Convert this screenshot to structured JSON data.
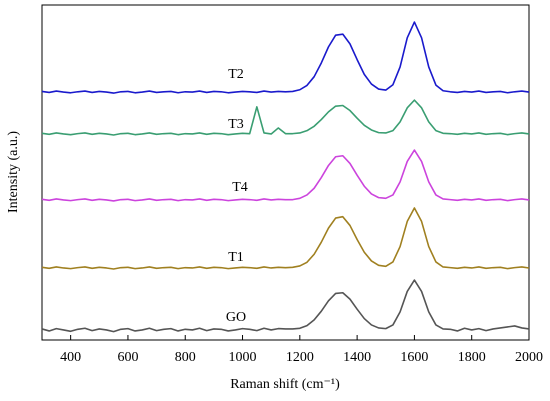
{
  "chart_data": {
    "type": "line",
    "xlabel": "Raman shift (cm⁻¹)",
    "ylabel": "Intensity (a.u.)",
    "xlim": [
      300,
      2000
    ],
    "xticks": [
      400,
      600,
      800,
      1000,
      1200,
      1400,
      1600,
      1800,
      2000
    ],
    "ylim": [
      0,
      100
    ],
    "x": [
      300,
      325,
      350,
      375,
      400,
      425,
      450,
      475,
      500,
      525,
      550,
      575,
      600,
      625,
      650,
      675,
      700,
      725,
      750,
      775,
      800,
      825,
      850,
      875,
      900,
      925,
      950,
      975,
      1000,
      1025,
      1050,
      1075,
      1100,
      1125,
      1150,
      1175,
      1200,
      1225,
      1250,
      1275,
      1300,
      1325,
      1350,
      1375,
      1400,
      1425,
      1450,
      1475,
      1500,
      1525,
      1550,
      1575,
      1600,
      1625,
      1650,
      1675,
      1700,
      1725,
      1750,
      1775,
      1800,
      1825,
      1850,
      1875,
      1900,
      1925,
      1950,
      1975,
      2000
    ],
    "series": [
      {
        "name": "T2",
        "color": "#1a1acc",
        "values": [
          74.2,
          73.9,
          74.3,
          74.0,
          73.8,
          74.1,
          74.3,
          73.9,
          74.2,
          74.0,
          73.7,
          74.1,
          74.2,
          73.8,
          74.0,
          74.3,
          73.9,
          74.1,
          74.2,
          73.8,
          74.1,
          74.0,
          74.3,
          73.9,
          74.2,
          74.1,
          73.8,
          74.0,
          74.2,
          74.1,
          73.9,
          74.3,
          74.0,
          74.2,
          74.1,
          74.2,
          74.7,
          76.0,
          78.6,
          82.7,
          87.5,
          91.0,
          91.3,
          88.4,
          83.7,
          79.3,
          76.4,
          74.9,
          74.6,
          76.2,
          81.5,
          90.2,
          94.9,
          90.2,
          81.5,
          76.1,
          74.4,
          74.1,
          73.9,
          74.2,
          74.0,
          74.3,
          73.9,
          74.1,
          74.2,
          73.8,
          74.1,
          74.3,
          74.0
        ]
      },
      {
        "name": "T3",
        "color": "#3a9e72",
        "values": [
          61.7,
          61.4,
          61.8,
          61.5,
          61.3,
          61.6,
          61.8,
          61.4,
          61.7,
          61.5,
          61.2,
          61.6,
          61.7,
          61.3,
          61.5,
          61.8,
          61.4,
          61.6,
          61.7,
          61.3,
          61.6,
          61.5,
          61.8,
          61.4,
          61.7,
          61.6,
          61.3,
          61.5,
          61.7,
          61.6,
          69.6,
          61.8,
          61.5,
          63.3,
          61.6,
          61.6,
          61.8,
          62.5,
          63.8,
          65.8,
          68.1,
          69.8,
          70.0,
          68.5,
          66.2,
          64.1,
          62.7,
          61.9,
          61.8,
          62.5,
          65.1,
          69.3,
          71.6,
          69.3,
          65.1,
          62.5,
          61.7,
          61.6,
          61.4,
          61.7,
          61.5,
          61.8,
          61.4,
          61.6,
          61.7,
          61.3,
          61.6,
          61.8,
          61.5
        ]
      },
      {
        "name": "T4",
        "color": "#cc44dd",
        "values": [
          42.0,
          41.7,
          42.1,
          41.8,
          41.6,
          41.9,
          42.1,
          41.7,
          42.0,
          41.8,
          41.5,
          41.9,
          42.0,
          41.6,
          41.8,
          42.1,
          41.7,
          41.9,
          42.0,
          41.6,
          41.9,
          41.8,
          42.1,
          41.7,
          42.0,
          41.9,
          41.6,
          41.8,
          42.0,
          41.9,
          41.7,
          42.1,
          41.8,
          42.0,
          41.9,
          41.9,
          42.3,
          43.3,
          45.3,
          48.5,
          52.1,
          54.7,
          55.0,
          52.7,
          49.2,
          45.9,
          43.6,
          42.5,
          42.3,
          43.3,
          47.2,
          53.3,
          56.7,
          53.3,
          47.2,
          43.3,
          42.1,
          41.9,
          41.7,
          42.0,
          41.8,
          42.1,
          41.7,
          41.9,
          42.0,
          41.6,
          41.9,
          42.1,
          41.8
        ]
      },
      {
        "name": "T1",
        "color": "#a08020",
        "values": [
          21.7,
          21.4,
          21.8,
          21.5,
          21.3,
          21.6,
          21.8,
          21.4,
          21.7,
          21.5,
          21.2,
          21.6,
          21.7,
          21.3,
          21.5,
          21.8,
          21.4,
          21.6,
          21.7,
          21.3,
          21.6,
          21.5,
          21.8,
          21.4,
          21.7,
          21.6,
          21.3,
          21.5,
          21.7,
          21.6,
          21.4,
          21.8,
          21.5,
          21.7,
          21.6,
          21.7,
          22.1,
          23.2,
          25.6,
          29.2,
          33.4,
          36.4,
          36.8,
          34.2,
          30.0,
          26.2,
          23.6,
          22.3,
          22.0,
          23.3,
          27.9,
          35.4,
          39.4,
          35.4,
          27.9,
          23.3,
          21.8,
          21.6,
          21.4,
          21.7,
          21.5,
          21.8,
          21.4,
          21.6,
          21.7,
          21.3,
          21.6,
          21.8,
          21.5
        ]
      },
      {
        "name": "GO",
        "color": "#555555",
        "values": [
          3.3,
          2.7,
          3.4,
          3.0,
          2.6,
          3.2,
          3.5,
          2.8,
          3.3,
          3.0,
          2.5,
          3.2,
          3.4,
          2.7,
          3.0,
          3.5,
          2.8,
          3.2,
          3.4,
          2.7,
          3.2,
          3.0,
          3.5,
          2.8,
          3.3,
          3.2,
          2.7,
          3.0,
          3.4,
          3.2,
          2.8,
          3.5,
          3.0,
          3.4,
          3.3,
          3.3,
          3.5,
          4.3,
          6.0,
          8.6,
          11.7,
          13.9,
          14.1,
          12.2,
          9.2,
          6.4,
          4.5,
          3.6,
          3.4,
          4.5,
          8.4,
          14.5,
          17.9,
          14.5,
          8.4,
          4.5,
          3.3,
          3.2,
          2.7,
          3.5,
          3.0,
          3.4,
          2.8,
          3.3,
          3.6,
          3.9,
          4.2,
          3.6,
          3.3
        ]
      }
    ]
  }
}
